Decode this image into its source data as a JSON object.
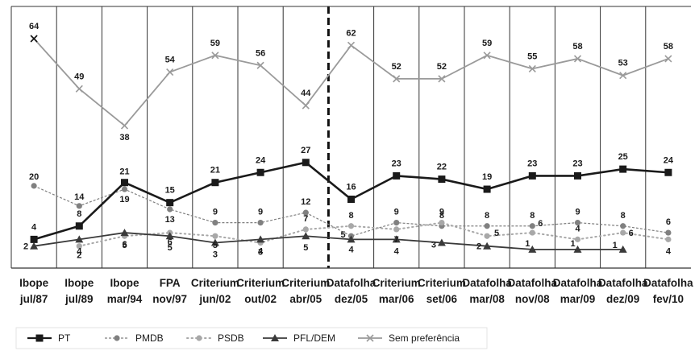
{
  "chart_data": {
    "type": "line",
    "categories": [
      [
        "Ibope",
        "jul/87"
      ],
      [
        "Ibope",
        "jul/89"
      ],
      [
        "Ibope",
        "mar/94"
      ],
      [
        "FPA",
        "nov/97"
      ],
      [
        "Criterium",
        "jun/02"
      ],
      [
        "Criterium",
        "out/02"
      ],
      [
        "Criterium",
        "abr/05"
      ],
      [
        "Datafolha",
        "dez/05"
      ],
      [
        "Criterium",
        "mar/06"
      ],
      [
        "Criterium",
        "set/06"
      ],
      [
        "Datafolha",
        "mar/08"
      ],
      [
        "Datafolha",
        "nov/08"
      ],
      [
        "Datafolha",
        "mar/09"
      ],
      [
        "Datafolha",
        "dez/09"
      ],
      [
        "Datafolha",
        "fev/10"
      ]
    ],
    "series": [
      {
        "name": "PT",
        "color": "#1a1a1a",
        "marker": "square",
        "line": "solid-thick",
        "values": [
          4,
          8,
          21,
          15,
          21,
          24,
          27,
          16,
          23,
          22,
          19,
          23,
          23,
          25,
          24
        ]
      },
      {
        "name": "PMDB",
        "color": "#808080",
        "marker": "circle",
        "line": "wavy",
        "values": [
          20,
          14,
          19,
          13,
          9,
          9,
          12,
          5,
          9,
          8,
          8,
          8,
          9,
          8,
          6
        ]
      },
      {
        "name": "PSDB",
        "color": "#a8a8a8",
        "marker": "circle",
        "line": "dotted",
        "values": [
          null,
          2,
          5,
          6,
          5,
          3,
          7,
          8,
          7,
          9,
          5,
          6,
          4,
          6,
          4
        ]
      },
      {
        "name": "PFL/DEM",
        "color": "#3a3a3a",
        "marker": "triangle",
        "line": "solid",
        "values": [
          2,
          4,
          6,
          5,
          3,
          4,
          5,
          4,
          4,
          3,
          2,
          1,
          1,
          1,
          null
        ]
      },
      {
        "name": "Sem preferência",
        "color": "#9a9a9a",
        "marker": "x",
        "line": "solid",
        "values": [
          64,
          49,
          38,
          54,
          59,
          56,
          44,
          62,
          52,
          52,
          59,
          55,
          58,
          53,
          58
        ]
      }
    ],
    "ylim": [
      0,
      70
    ],
    "grid": "vertical",
    "divider_after_category": 6,
    "legend_position": "bottom-left"
  }
}
